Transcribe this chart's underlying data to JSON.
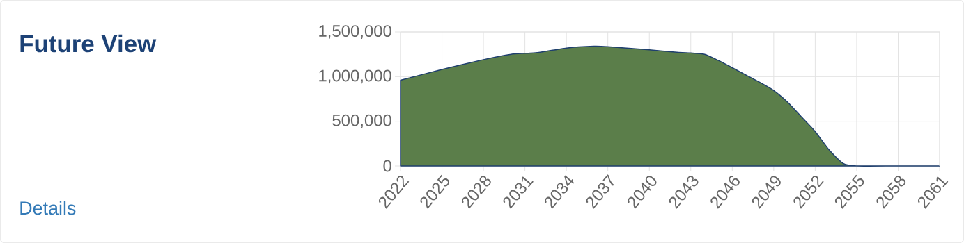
{
  "chart_data": {
    "type": "area",
    "title": "Future View",
    "annotations": [
      "Details"
    ],
    "x": [
      2022,
      2025,
      2028,
      2030,
      2031,
      2032,
      2034,
      2036,
      2037,
      2040,
      2042,
      2043,
      2044,
      2045,
      2046,
      2048,
      2049,
      2050,
      2051,
      2052,
      2053,
      2054,
      2055,
      2058,
      2061
    ],
    "series": [
      {
        "color": "#5b7e4a",
        "values": [
          960000,
          1080000,
          1190000,
          1250000,
          1260000,
          1270000,
          1320000,
          1340000,
          1335000,
          1300000,
          1272000,
          1265000,
          1250000,
          1180000,
          1100000,
          935000,
          845000,
          715000,
          550000,
          385000,
          180000,
          30000,
          0,
          0,
          0
        ]
      }
    ],
    "xlim": [
      2022,
      2061
    ],
    "xticks": [
      2022,
      2025,
      2028,
      2031,
      2034,
      2037,
      2040,
      2043,
      2046,
      2049,
      2052,
      2055,
      2058,
      2061
    ],
    "ylim": [
      0,
      1500000
    ],
    "yticks": [
      {
        "value": 0,
        "label": "0"
      },
      {
        "value": 500000,
        "label": "500,000"
      },
      {
        "value": 1000000,
        "label": "1,000,000"
      },
      {
        "value": 1500000,
        "label": "1,500,000"
      }
    ],
    "grid": true
  }
}
